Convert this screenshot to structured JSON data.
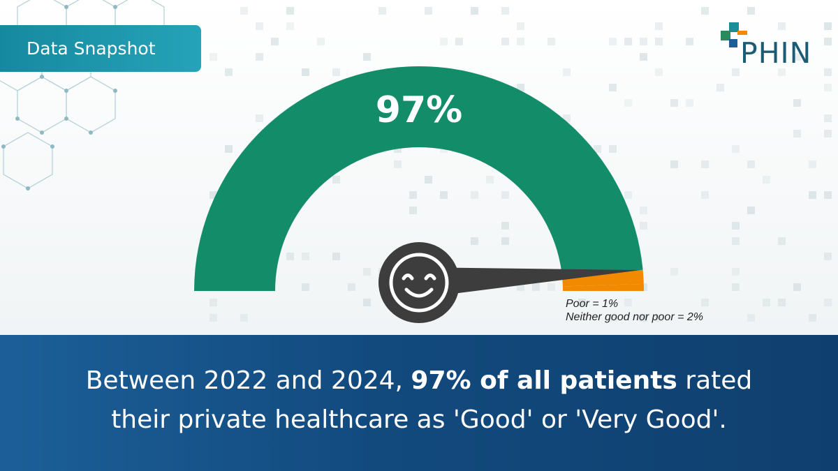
{
  "badge": {
    "label": "Data Snapshot"
  },
  "logo": {
    "text": "PHIN"
  },
  "colors": {
    "good": "#138c6a",
    "poor_or_neutral": "#f18a00",
    "needle": "#3d3d3d",
    "banner": "#124a7e",
    "badge": "#1e95ab"
  },
  "chart_data": {
    "type": "gauge",
    "headline": "97%",
    "segments": [
      {
        "label": "Good or Very Good",
        "value": 97
      },
      {
        "label": "Neither good nor poor",
        "value": 2
      },
      {
        "label": "Poor",
        "value": 1
      }
    ],
    "range": [
      0,
      100
    ],
    "needle_value": 97,
    "annotations": [
      "Poor = 1%",
      "Neither good nor poor = 2%"
    ],
    "needle_icon": "smiley-face-icon"
  },
  "footer": {
    "line1_pre": "Between 2022 and 2024, ",
    "line1_bold": "97% of all patients",
    "line1_post": " rated",
    "line2": "their private healthcare as 'Good' or 'Very Good'."
  }
}
